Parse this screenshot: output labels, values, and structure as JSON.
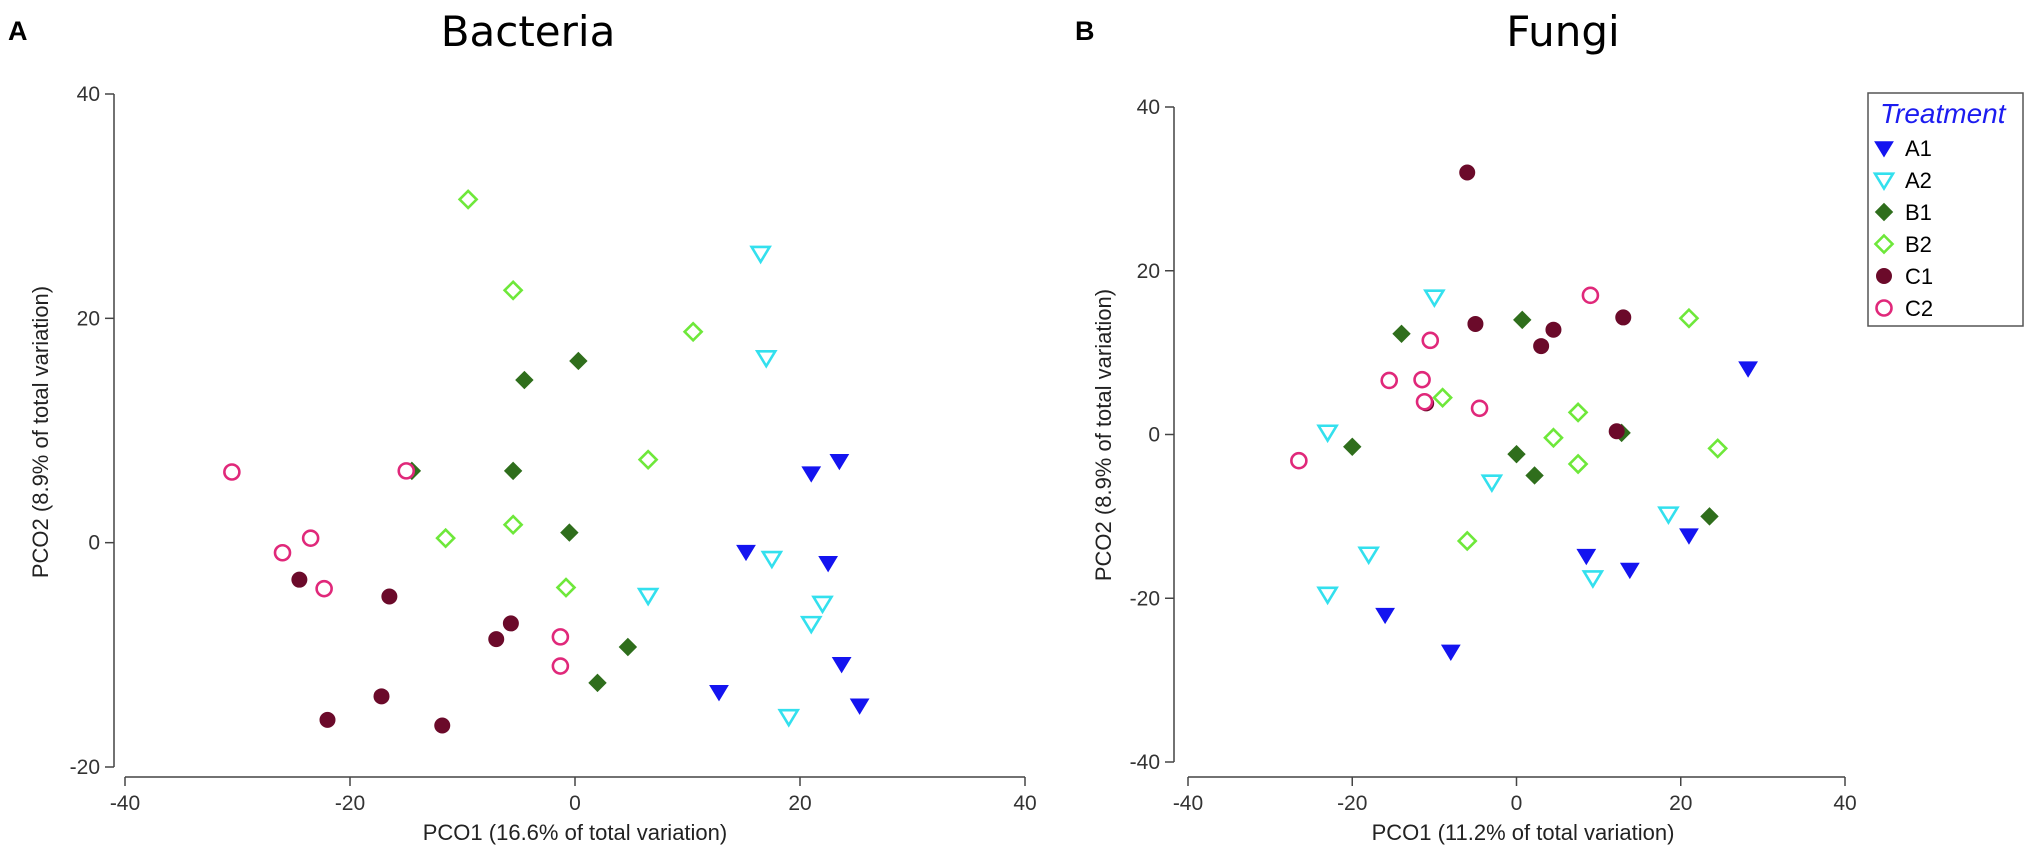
{
  "treatments": [
    {
      "name": "A1",
      "marker": "triangle-down",
      "filled": true,
      "color": "#1414f0"
    },
    {
      "name": "A2",
      "marker": "triangle-down",
      "filled": false,
      "color": "#33e0ee"
    },
    {
      "name": "B1",
      "marker": "diamond",
      "filled": true,
      "color": "#2f6e1c"
    },
    {
      "name": "B2",
      "marker": "diamond",
      "filled": false,
      "color": "#6ee83a"
    },
    {
      "name": "C1",
      "marker": "circle",
      "filled": true,
      "color": "#6b0a2a"
    },
    {
      "name": "C2",
      "marker": "circle",
      "filled": false,
      "color": "#e0287a"
    }
  ],
  "legend": {
    "title": "Treatment",
    "placement": "top-right"
  },
  "chart_data": [
    {
      "panel": "A",
      "type": "scatter",
      "title": "Bacteria",
      "xlabel": "PCO1 (16.6% of total variation)",
      "ylabel": "PCO2 (8.9% of total variation)",
      "xlim": [
        -40,
        40
      ],
      "ylim": [
        -20,
        40
      ],
      "xticks": [
        -40,
        -20,
        0,
        20,
        40
      ],
      "yticks": [
        -20,
        0,
        20,
        40
      ],
      "series": [
        {
          "name": "A1",
          "points": [
            [
              23.5,
              7.3
            ],
            [
              21,
              6.2
            ],
            [
              15.2,
              -0.8
            ],
            [
              22.5,
              -1.8
            ],
            [
              23.7,
              -10.8
            ],
            [
              25.3,
              -14.5
            ],
            [
              12.8,
              -13.3
            ]
          ]
        },
        {
          "name": "A2",
          "points": [
            [
              16.5,
              25.8
            ],
            [
              17,
              16.5
            ],
            [
              17.5,
              -1.4
            ],
            [
              6.5,
              -4.7
            ],
            [
              22,
              -5.4
            ],
            [
              21,
              -7.2
            ],
            [
              19,
              -15.5
            ]
          ]
        },
        {
          "name": "B1",
          "points": [
            [
              0.3,
              16.2
            ],
            [
              -4.5,
              14.5
            ],
            [
              -14.5,
              6.4
            ],
            [
              -5.5,
              6.4
            ],
            [
              -0.5,
              0.9
            ],
            [
              4.7,
              -9.3
            ],
            [
              2,
              -12.5
            ]
          ]
        },
        {
          "name": "B2",
          "points": [
            [
              -9.5,
              30.6
            ],
            [
              -5.5,
              22.5
            ],
            [
              10.5,
              18.8
            ],
            [
              6.5,
              7.4
            ],
            [
              -11.5,
              0.4
            ],
            [
              -5.5,
              1.6
            ],
            [
              -0.8,
              -4
            ]
          ]
        },
        {
          "name": "C1",
          "points": [
            [
              -24.5,
              -3.3
            ],
            [
              -16.5,
              -4.8
            ],
            [
              -5.7,
              -7.2
            ],
            [
              -7,
              -8.6
            ],
            [
              -17.2,
              -13.7
            ],
            [
              -22,
              -15.8
            ],
            [
              -11.8,
              -16.3
            ]
          ]
        },
        {
          "name": "C2",
          "points": [
            [
              -30.5,
              6.3
            ],
            [
              -15,
              6.4
            ],
            [
              -26,
              -0.9
            ],
            [
              -23.5,
              0.4
            ],
            [
              -22.3,
              -4.1
            ],
            [
              -1.3,
              -8.4
            ],
            [
              -1.3,
              -11
            ]
          ]
        }
      ]
    },
    {
      "panel": "B",
      "type": "scatter",
      "title": "Fungi",
      "xlabel": "PCO1 (11.2% of total variation)",
      "ylabel": "PCO2 (8.9% of total variation)",
      "xlim": [
        -40,
        40
      ],
      "ylim": [
        -40,
        40
      ],
      "xticks": [
        -40,
        -20,
        0,
        20,
        40
      ],
      "yticks": [
        -40,
        -20,
        0,
        20,
        40
      ],
      "series": [
        {
          "name": "A1",
          "points": [
            [
              28.2,
              8.1
            ],
            [
              8.5,
              -14.8
            ],
            [
              13.8,
              -16.5
            ],
            [
              21,
              -12.3
            ],
            [
              -16,
              -22
            ],
            [
              -8,
              -26.5
            ]
          ]
        },
        {
          "name": "A2",
          "points": [
            [
              -10,
              16.8
            ],
            [
              -23,
              0.3
            ],
            [
              -3,
              -5.8
            ],
            [
              18.5,
              -9.7
            ],
            [
              -18,
              -14.6
            ],
            [
              -23,
              -19.5
            ],
            [
              9.3,
              -17.5
            ]
          ]
        },
        {
          "name": "B1",
          "points": [
            [
              -14,
              12.3
            ],
            [
              0.7,
              14
            ],
            [
              -20,
              -1.5
            ],
            [
              0,
              -2.4
            ],
            [
              2.2,
              -5
            ],
            [
              12.8,
              0.2
            ],
            [
              23.5,
              -10
            ]
          ]
        },
        {
          "name": "B2",
          "points": [
            [
              21,
              14.2
            ],
            [
              -9,
              4.5
            ],
            [
              7.5,
              2.7
            ],
            [
              4.5,
              -0.4
            ],
            [
              24.5,
              -1.7
            ],
            [
              7.5,
              -3.6
            ],
            [
              -6,
              -13
            ]
          ]
        },
        {
          "name": "C1",
          "points": [
            [
              -6,
              32
            ],
            [
              -5,
              13.5
            ],
            [
              4.5,
              12.8
            ],
            [
              3,
              10.8
            ],
            [
              13,
              14.3
            ],
            [
              -11,
              3.8
            ],
            [
              12.2,
              0.4
            ]
          ]
        },
        {
          "name": "C2",
          "points": [
            [
              9,
              17
            ],
            [
              -10.5,
              11.5
            ],
            [
              -15.5,
              6.6
            ],
            [
              -11.5,
              6.7
            ],
            [
              -11.2,
              4
            ],
            [
              -4.5,
              3.2
            ],
            [
              -26.5,
              -3.2
            ]
          ]
        }
      ]
    }
  ]
}
